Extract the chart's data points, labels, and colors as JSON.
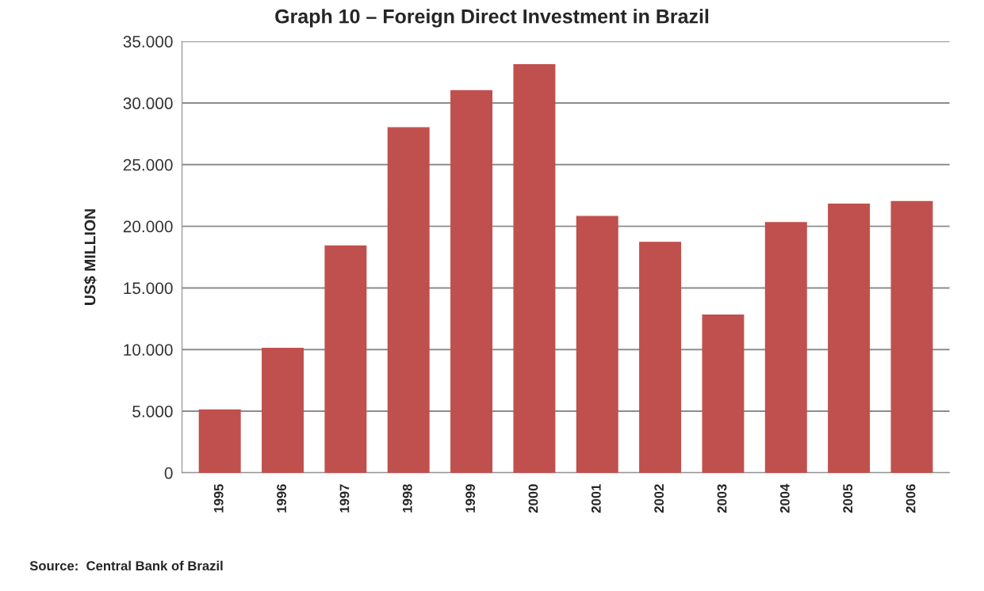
{
  "chart_data": {
    "type": "bar",
    "title": "Graph 10 – Foreign Direct Investment in Brazil",
    "ylabel": "US$ MILLION",
    "categories": [
      "1995",
      "1996",
      "1997",
      "1998",
      "1999",
      "2000",
      "2001",
      "2002",
      "2003",
      "2004",
      "2005",
      "2006"
    ],
    "values": [
      5100,
      10100,
      18400,
      28000,
      31000,
      33100,
      20800,
      18700,
      12800,
      20300,
      21800,
      22000
    ],
    "color": "#c0504d",
    "ylim": [
      0,
      35000
    ],
    "yticks": [
      {
        "value": 0,
        "label": "0"
      },
      {
        "value": 5000,
        "label": "5.000"
      },
      {
        "value": 10000,
        "label": "10.000"
      },
      {
        "value": 15000,
        "label": "15.000"
      },
      {
        "value": 20000,
        "label": "20.000"
      },
      {
        "value": 25000,
        "label": "25.000"
      },
      {
        "value": 30000,
        "label": "30.000"
      },
      {
        "value": 35000,
        "label": "35.000"
      }
    ],
    "grid": "y",
    "annotations": [
      "Source:  Central Bank of Brazil"
    ]
  }
}
